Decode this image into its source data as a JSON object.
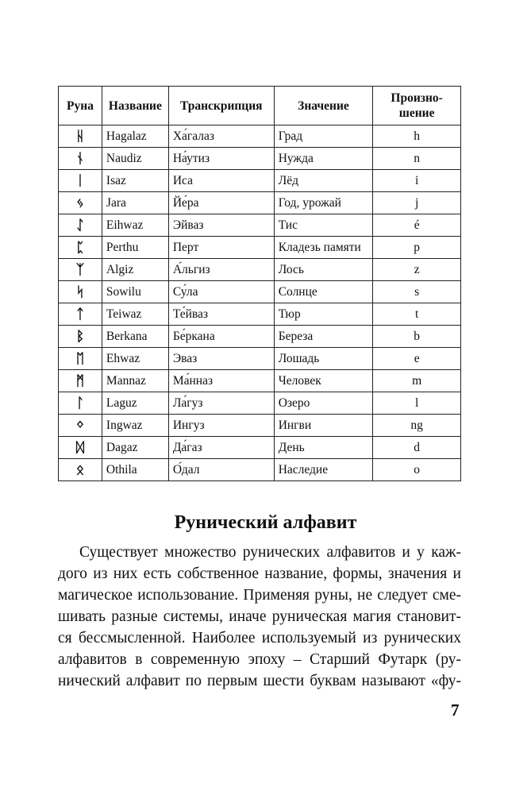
{
  "table": {
    "headers": [
      "Руна",
      "Название",
      "Транскрипция",
      "Значение",
      "Произно-шение"
    ],
    "header_pron_lines": [
      "Произно-",
      "шение"
    ],
    "rows": [
      {
        "rune": "ᚺ",
        "name": "Hagalaz",
        "transcription": "Ха́галаз",
        "meaning": "Град",
        "pronunciation": "h"
      },
      {
        "rune": "ᚾ",
        "name": "Naudiz",
        "transcription": "На́утиз",
        "meaning": "Нужда",
        "pronunciation": "n"
      },
      {
        "rune": "ᛁ",
        "name": "Isaz",
        "transcription": "Иса",
        "meaning": "Лёд",
        "pronunciation": "i"
      },
      {
        "rune": "ᛃ",
        "name": "Jara",
        "transcription": "Йе́ра",
        "meaning": "Год, урожай",
        "pronunciation": "j"
      },
      {
        "rune": "ᛇ",
        "name": "Eihwaz",
        "transcription": "Эйваз",
        "meaning": "Тис",
        "pronunciation": "é"
      },
      {
        "rune": "ᛈ",
        "name": "Perthu",
        "transcription": "Перт",
        "meaning": "Кладезь памяти",
        "pronunciation": "p"
      },
      {
        "rune": "ᛉ",
        "name": "Algiz",
        "transcription": "А́льгиз",
        "meaning": "Лось",
        "pronunciation": "z"
      },
      {
        "rune": "ᛋ",
        "name": "Sowilu",
        "transcription": "Су́ла",
        "meaning": "Солнце",
        "pronunciation": "s"
      },
      {
        "rune": "ᛏ",
        "name": "Teiwaz",
        "transcription": "Те́йваз",
        "meaning": "Тюр",
        "pronunciation": "t"
      },
      {
        "rune": "ᛒ",
        "name": "Berkana",
        "transcription": "Бе́ркана",
        "meaning": "Береза",
        "pronunciation": "b"
      },
      {
        "rune": "ᛖ",
        "name": "Ehwaz",
        "transcription": "Эваз",
        "meaning": "Лошадь",
        "pronunciation": "e"
      },
      {
        "rune": "ᛗ",
        "name": "Mannaz",
        "transcription": "Ма́нназ",
        "meaning": "Человек",
        "pronunciation": "m"
      },
      {
        "rune": "ᛚ",
        "name": "Laguz",
        "transcription": "Ла́гуз",
        "meaning": "Озеро",
        "pronunciation": "l"
      },
      {
        "rune": "ᛜ",
        "name": "Ingwaz",
        "transcription": "Ингуз",
        "meaning": "Ингви",
        "pronunciation": "ng"
      },
      {
        "rune": "ᛞ",
        "name": "Dagaz",
        "transcription": "Да́газ",
        "meaning": "День",
        "pronunciation": "d"
      },
      {
        "rune": "ᛟ",
        "name": "Othila",
        "transcription": "О́дал",
        "meaning": "Наследие",
        "pronunciation": "o"
      }
    ]
  },
  "section_title": "Рунический алфавит",
  "paragraph_lines": [
    "Существует множество рунических алфавитов и у каж-",
    "дого из них есть собственное название, формы, значения и",
    "магическое использование. Применяя руны, не следует сме-",
    "шивать разные системы, иначе руническая магия становит-",
    "ся бессмысленной. Наиболее используемый из рунических",
    "алфавитов в современную эпоху – Старший Футарк (ру-",
    "нический алфавит по первым шести буквам называют «фу-"
  ],
  "page_number": "7"
}
